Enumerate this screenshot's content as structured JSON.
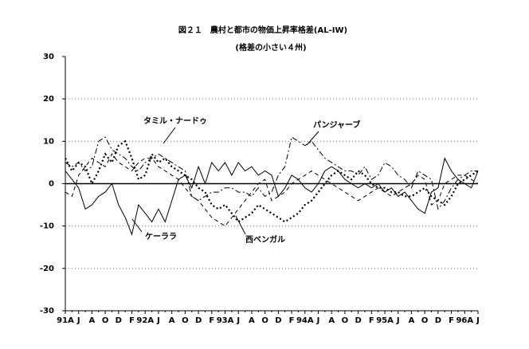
{
  "chart_data": {
    "type": "line",
    "title": "図２１　農村と都市の物価上昇率格差(AL-IW)",
    "subtitle": "(格差の小さい４州)",
    "categories": [
      "91A",
      null,
      "J",
      null,
      "A",
      null,
      "O",
      null,
      "D",
      null,
      "F",
      null,
      "92A",
      null,
      "J",
      null,
      "A",
      null,
      "O",
      null,
      "D",
      null,
      "F",
      null,
      "93A",
      null,
      "J",
      null,
      "A",
      null,
      "O",
      null,
      "D",
      null,
      "F",
      null,
      "94A",
      null,
      "J",
      null,
      "A",
      null,
      "O",
      null,
      "D",
      null,
      "F",
      null,
      "95A",
      null,
      "J",
      null,
      "A",
      null,
      "O",
      null,
      "D",
      null,
      "F",
      null,
      "96A",
      null,
      "J"
    ],
    "series": [
      {
        "name": "ケーララ",
        "color": "#000000",
        "style": "solid",
        "values": [
          3,
          1,
          -1,
          -6,
          -5,
          -3,
          -2,
          0,
          -5,
          -8,
          -12,
          -5,
          -7,
          -9,
          -6,
          -9,
          -4,
          1,
          2,
          -1,
          4,
          0,
          5,
          3,
          5,
          2,
          5,
          3,
          4,
          2,
          3,
          2,
          -3,
          -1,
          2,
          1,
          -1,
          -2,
          0,
          3,
          4,
          3,
          1,
          0,
          -1,
          0,
          -1,
          0,
          -2,
          -1,
          -3,
          -2,
          -4,
          -6,
          -7,
          -2,
          -1,
          6,
          3,
          1,
          0,
          -1,
          3
        ]
      },
      {
        "name": "タミル・ナードゥ",
        "color": "#000000",
        "style": "dotted",
        "values": [
          6,
          3,
          5,
          4,
          0,
          3,
          7,
          5,
          9,
          10,
          6,
          1,
          2,
          7,
          5,
          6,
          4,
          3,
          2,
          1,
          -1,
          -2,
          -5,
          -6,
          -5,
          -7,
          -9,
          -8,
          -7,
          -5,
          -6,
          -7,
          -8,
          -9,
          -8,
          -7,
          -5,
          -4,
          -2,
          0,
          2,
          3,
          2,
          1,
          3,
          2,
          0,
          -1,
          -1,
          -2,
          -2,
          -3,
          -3,
          -2,
          -1,
          -3,
          -4,
          -5,
          -3,
          0,
          1,
          2,
          3
        ]
      },
      {
        "name": "パンジャーブ",
        "color": "#000000",
        "style": "dashdot",
        "values": [
          5,
          4,
          5,
          3,
          4,
          10,
          11,
          8,
          7,
          6,
          4,
          3,
          5,
          6,
          7,
          6,
          5,
          4,
          3,
          -3,
          -4,
          -3,
          -2,
          -2,
          -1,
          -1,
          -2,
          -2,
          -3,
          -1,
          -3,
          -2,
          2,
          4,
          11,
          10,
          9,
          10,
          8,
          6,
          5,
          4,
          3,
          3,
          2,
          4,
          1,
          2,
          5,
          4,
          2,
          1,
          -1,
          3,
          2,
          1,
          -6,
          -4,
          -1,
          1,
          2,
          3,
          3
        ]
      },
      {
        "name": "西ベンガル",
        "color": "#000000",
        "style": "dashed",
        "values": [
          -2,
          -3,
          2,
          4,
          6,
          5,
          4,
          7,
          5,
          4,
          3,
          5,
          6,
          6,
          4,
          3,
          2,
          1,
          -1,
          -3,
          -4,
          -6,
          -8,
          -9,
          -10,
          -8,
          -6,
          -4,
          -2,
          0,
          1,
          -4,
          -3,
          -2,
          0,
          1,
          2,
          3,
          2,
          1,
          0,
          -1,
          -2,
          -3,
          -4,
          -3,
          -2,
          -1,
          -2,
          -3,
          -2,
          -1,
          0,
          2,
          1,
          -5,
          -4,
          0,
          1,
          2,
          2,
          1,
          0
        ]
      }
    ],
    "ylim": [
      -30,
      30
    ],
    "yticks": [
      -30,
      -20,
      -10,
      0,
      10,
      20,
      30
    ],
    "grid": true
  }
}
